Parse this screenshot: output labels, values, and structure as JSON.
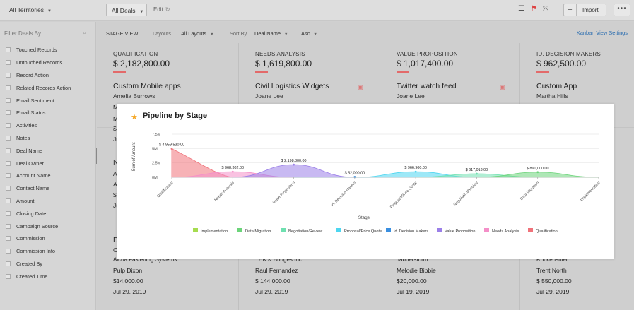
{
  "topbar": {
    "territory": "All Territories",
    "deal_filter": "All Deals",
    "edit_label": "Edit",
    "import_label": "Import"
  },
  "sidebar": {
    "title": "Filter Deals By",
    "filters": [
      "Touched Records",
      "Untouched Records",
      "Record Action",
      "Related Records Action",
      "Email Sentiment",
      "Email Status",
      "Activities",
      "Notes",
      "Deal Name",
      "Deal Owner",
      "Account Name",
      "Contact Name",
      "Amount",
      "Closing Date",
      "Campaign Source",
      "Commission",
      "Commission Info",
      "Created By",
      "Created Time"
    ]
  },
  "subtoolbar": {
    "stage_view": "STAGE VIEW",
    "layouts_label": "Layouts",
    "layouts_value": "All Layouts",
    "sort_label": "Sort By",
    "sort_value": "Deal Name",
    "order_value": "Asc",
    "kanban_settings": "Kanban View Settings"
  },
  "columns": [
    {
      "stage": "QUALIFICATION",
      "amount": "$ 2,182,800.00",
      "card_title": "Custom Mobile apps",
      "card_contact": "Amelia Burrows",
      "frag": [
        "M",
        "M",
        "$",
        "Ju"
      ],
      "mid_frag": [
        "N",
        "A",
        "A",
        "$",
        "Ju"
      ],
      "bottom": {
        "title": "D",
        "acct": "Alcoa Fastening Systems",
        "contact": "Pulp Dixon",
        "amount": "$14,000.00",
        "date": "Jul 29, 2019",
        "c": "C"
      }
    },
    {
      "stage": "NEEDS ANALYSIS",
      "amount": "$ 1,619,800.00",
      "card_title": "Civil Logistics Widgets",
      "card_contact": "Joane Lee",
      "bottom": {
        "acct": "THK & Bridges Inc.",
        "contact": "Raul Fernandez",
        "amount": "$ 144,000.00",
        "date": "Jul 29, 2019"
      }
    },
    {
      "stage": "VALUE PROPOSITION",
      "amount": "$ 1,017,400.00",
      "card_title": "Twitter watch feed",
      "card_contact": "Joane Lee",
      "bottom": {
        "acct": "Jabberstorm",
        "contact": "Melodie Bibbie",
        "amount": "$20,000.00",
        "date": "Jul 19, 2019"
      }
    },
    {
      "stage": "ID. DECISION MAKERS",
      "amount": "$ 962,500.00",
      "card_title": "Custom App",
      "card_contact": "Martha Hills",
      "bottom": {
        "acct": "Rockenshier",
        "contact": "Trent North",
        "amount": "$ 550,000.00",
        "date": "Jul 29, 2019"
      }
    }
  ],
  "chart_panel": {
    "title": "Pipeline by Stage"
  },
  "chart_data": {
    "type": "area",
    "title": "Pipeline by Stage",
    "xlabel": "Stage",
    "ylabel": "Sum of Amount",
    "y_ticks": [
      "7.5M",
      "5M",
      "2.5M",
      "0M"
    ],
    "ylim": [
      0,
      7500000
    ],
    "categories": [
      "Qualification",
      "Needs Analysis",
      "Value Proposition",
      "Id. Decision Makers",
      "Proposal/Price Quote",
      "Negotiation/Review",
      "Data Migration",
      "Implementation"
    ],
    "series": [
      {
        "name": "Qualification",
        "color": "#f0727a",
        "stage_index": 0,
        "value": 4959530,
        "label": "$ 4,959,530.00"
      },
      {
        "name": "Needs Analysis",
        "color": "#f48fc8",
        "stage_index": 1,
        "value": 968302,
        "label": "$ 968,302.00"
      },
      {
        "name": "Value Proposition",
        "color": "#9b7fe8",
        "stage_index": 2,
        "value": 2198800,
        "label": "$ 2,198,800.00"
      },
      {
        "name": "Id. Decision Makers",
        "color": "#3a8fe0",
        "stage_index": 3,
        "value": 52000,
        "label": "$ 52,000.00"
      },
      {
        "name": "Proposal/Price Quote",
        "color": "#4dd6f0",
        "stage_index": 4,
        "value": 966900,
        "label": "$ 966,900.00"
      },
      {
        "name": "Negotiation/Review",
        "color": "#6fe0b0",
        "stage_index": 5,
        "value": 617013,
        "label": "$ 617,013.00"
      },
      {
        "name": "Data Migration",
        "color": "#6cd47a",
        "stage_index": 6,
        "value": 890000,
        "label": "$ 890,000.00"
      },
      {
        "name": "Implementation",
        "color": "#a6dc4f",
        "stage_index": 7,
        "value": 0,
        "label": ""
      }
    ],
    "legend": [
      "Implementation",
      "Data Migration",
      "Negotiation/Review",
      "Proposal/Price Quote",
      "Id. Decision Makers",
      "Value Proposition",
      "Needs Analysis",
      "Qualification"
    ],
    "legend_colors": [
      "#a6dc4f",
      "#6cd47a",
      "#6fe0b0",
      "#4dd6f0",
      "#3a8fe0",
      "#9b7fe8",
      "#f48fc8",
      "#f0727a"
    ]
  }
}
